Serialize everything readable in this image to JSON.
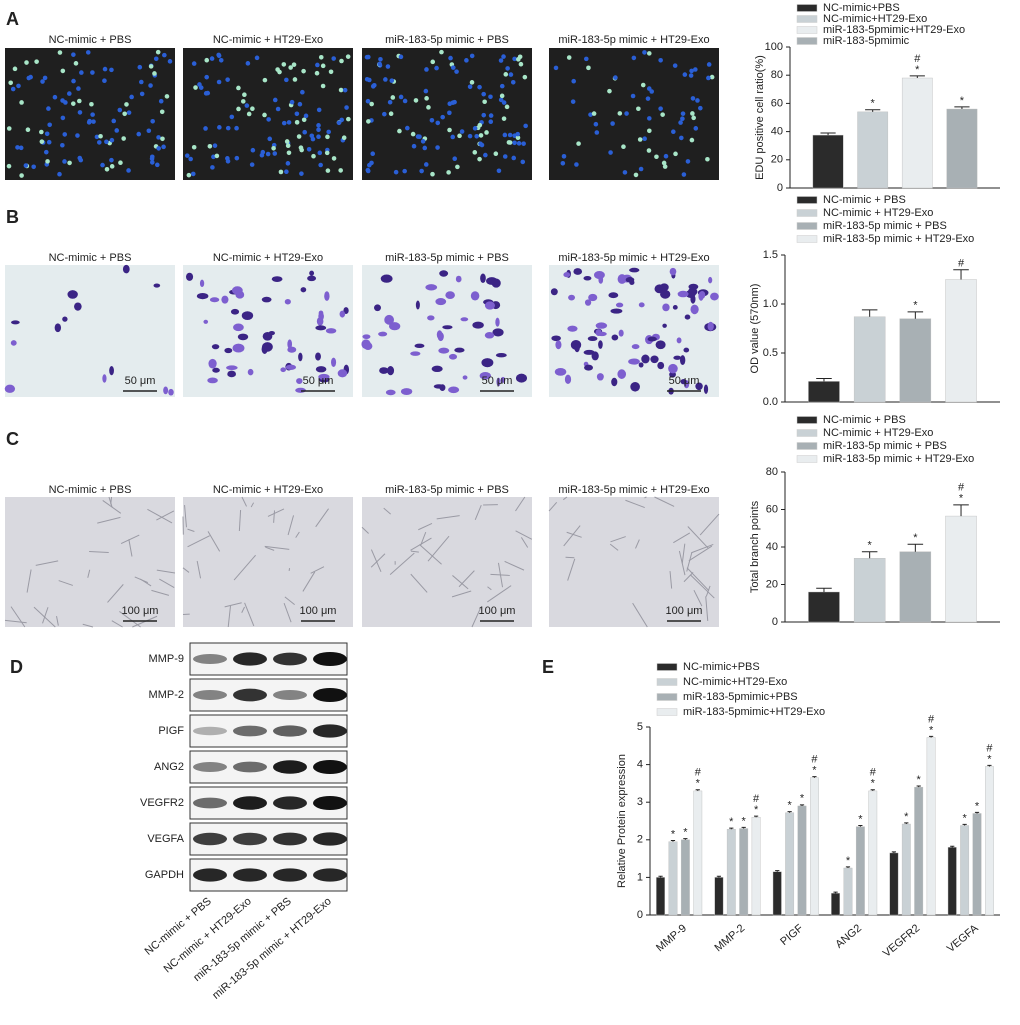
{
  "panel_labels": [
    "A",
    "B",
    "C",
    "D",
    "E"
  ],
  "image_rows": [
    {
      "titles": [
        "NC-mimic + PBS",
        "NC-mimic + HT29-Exo",
        "miR-183-5p mimic + PBS",
        "miR-183-5p mimic + HT29-Exo"
      ]
    },
    {
      "titles": [
        "NC-mimic + PBS",
        "NC-mimic + HT29-Exo",
        "miR-183-5p mimic + PBS",
        "miR-183-5p mimic + HT29-Exo"
      ],
      "scale_bar": "50 μm"
    },
    {
      "titles": [
        "NC-mimic + PBS",
        "NC-mimic + HT29-Exo",
        "miR-183-5p mimic + PBS",
        "miR-183-5p mimic + HT29-Exo"
      ],
      "scale_bar": "100 μm"
    }
  ],
  "western_blot": {
    "proteins": [
      "MMP-9",
      "MMP-2",
      "PIGF",
      "ANG2",
      "VEGFR2",
      "VEGFA",
      "GAPDH"
    ],
    "lanes": [
      "NC-mimic + PBS",
      "NC-mimic + HT29-Exo",
      "miR-183-5p mimic + PBS",
      "miR-183-5p mimic + HT29-Exo"
    ]
  },
  "chart_data": [
    {
      "type": "bar",
      "ylabel": "EDU positive cell ratio(%)",
      "ylim": [
        0,
        100
      ],
      "yticks": [
        0,
        20,
        40,
        60,
        80,
        100
      ],
      "series": [
        {
          "name": "NC-mimic+PBS",
          "color": "#2b2b2b",
          "values": [
            37.5
          ],
          "errors": [
            1.5
          ]
        },
        {
          "name": "NC-mimic+HT29-Exo",
          "color": "#c9d1d5",
          "values": [
            54
          ],
          "errors": [
            1.5
          ],
          "annotation": [
            "*"
          ]
        },
        {
          "name": "miR-183-5pmimic+HT29-Exo",
          "color": "#e9edef",
          "values": [
            78
          ],
          "errors": [
            1.5
          ],
          "annotation": [
            "*",
            "#"
          ]
        },
        {
          "name": "miR-183-5pmimic",
          "color": "#a8b0b4",
          "values": [
            56
          ],
          "errors": [
            1.5
          ],
          "annotation": [
            "*"
          ]
        }
      ]
    },
    {
      "type": "bar",
      "ylabel": "OD value (570nm)",
      "ylim": [
        0,
        1.5
      ],
      "yticks": [
        {
          "value": 0,
          "label": "0.0"
        },
        {
          "value": 0.5,
          "label": "0.5"
        },
        {
          "value": 1,
          "label": "1.0"
        },
        {
          "value": 1.5,
          "label": "1.5"
        }
      ],
      "series": [
        {
          "name": "NC-mimic + PBS",
          "color": "#2b2b2b",
          "values": [
            0.21
          ],
          "errors": [
            0.03
          ]
        },
        {
          "name": "NC-mimic + HT29-Exo",
          "color": "#c9d1d5",
          "values": [
            0.87
          ],
          "errors": [
            0.07
          ]
        },
        {
          "name": "miR-183-5p mimic + PBS",
          "color": "#a8b0b4",
          "values": [
            0.85
          ],
          "errors": [
            0.07
          ],
          "annotation": [
            "*"
          ]
        },
        {
          "name": "miR-183-5p mimic + HT29-Exo",
          "color": "#e9edef",
          "values": [
            1.25
          ],
          "errors": [
            0.1
          ],
          "annotation": [
            "#"
          ]
        }
      ]
    },
    {
      "type": "bar",
      "ylabel": "Total branch points",
      "ylim": [
        0,
        80
      ],
      "yticks": [
        0,
        20,
        40,
        60,
        80
      ],
      "series": [
        {
          "name": "NC-mimic + PBS",
          "color": "#2b2b2b",
          "values": [
            16
          ],
          "errors": [
            2
          ]
        },
        {
          "name": "NC-mimic + HT29-Exo",
          "color": "#c9d1d5",
          "values": [
            34
          ],
          "errors": [
            3.5
          ],
          "annotation": [
            "*"
          ]
        },
        {
          "name": "miR-183-5p mimic + PBS",
          "color": "#a8b0b4",
          "values": [
            37.5
          ],
          "errors": [
            4
          ],
          "annotation": [
            "*"
          ]
        },
        {
          "name": "miR-183-5p mimic + HT29-Exo",
          "color": "#e9edef",
          "values": [
            56.5
          ],
          "errors": [
            6
          ],
          "annotation": [
            "*",
            "#"
          ]
        }
      ]
    },
    {
      "type": "bar",
      "ylabel": "Relative Protein expression",
      "ylim": [
        0,
        5
      ],
      "yticks": [
        0,
        1,
        2,
        3,
        4,
        5
      ],
      "categories": [
        "MMP-9",
        "MMP-2",
        "PIGF",
        "ANG2",
        "VEGFR2",
        "VEGFA"
      ],
      "series": [
        {
          "name": "NC-mimic+PBS",
          "color": "#2b2b2b",
          "values": [
            1.0,
            1.0,
            1.15,
            0.58,
            1.65,
            1.8
          ],
          "errors": [
            0.03,
            0.03,
            0.03,
            0.03,
            0.03,
            0.03
          ]
        },
        {
          "name": "NC-mimic+HT29-Exo",
          "color": "#c9d1d5",
          "values": [
            1.95,
            2.28,
            2.72,
            1.25,
            2.42,
            2.38
          ],
          "errors": [
            0.03,
            0.03,
            0.03,
            0.03,
            0.03,
            0.03
          ],
          "annotation": [
            "*"
          ]
        },
        {
          "name": "miR-183-5pmimic+PBS",
          "color": "#a8b0b4",
          "values": [
            2.0,
            2.3,
            2.9,
            2.35,
            3.4,
            2.7
          ],
          "errors": [
            0.03,
            0.03,
            0.03,
            0.03,
            0.03,
            0.03
          ],
          "annotation": [
            "*"
          ]
        },
        {
          "name": "miR-183-5pmimic+HT29-Exo",
          "color": "#e9edef",
          "values": [
            3.3,
            2.6,
            3.65,
            3.3,
            4.72,
            3.95
          ],
          "errors": [
            0.03,
            0.03,
            0.03,
            0.03,
            0.03,
            0.03
          ],
          "annotation": [
            "*",
            "#"
          ]
        }
      ]
    }
  ]
}
